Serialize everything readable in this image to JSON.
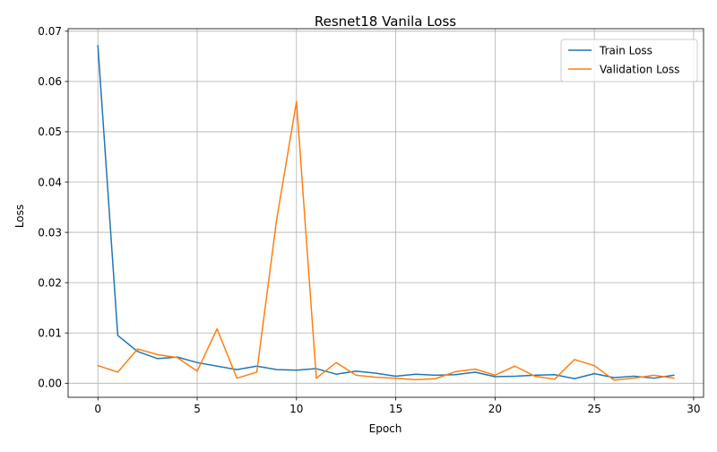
{
  "chart_data": {
    "type": "line",
    "title": "Resnet18 Vanila Loss",
    "xlabel": "Epoch",
    "ylabel": "Loss",
    "xlim": [
      -1.5,
      30.5
    ],
    "ylim": [
      -0.0028,
      0.0705
    ],
    "xticks": [
      0,
      5,
      10,
      15,
      20,
      25,
      30
    ],
    "yticks": [
      0.0,
      0.01,
      0.02,
      0.03,
      0.04,
      0.05,
      0.06,
      0.07
    ],
    "ytick_labels": [
      "0.00",
      "0.01",
      "0.02",
      "0.03",
      "0.04",
      "0.05",
      "0.06",
      "0.07"
    ],
    "grid": true,
    "legend": "top-right",
    "x": [
      0,
      1,
      2,
      3,
      4,
      5,
      6,
      7,
      8,
      9,
      10,
      11,
      12,
      13,
      14,
      15,
      16,
      17,
      18,
      19,
      20,
      21,
      22,
      23,
      24,
      25,
      26,
      27,
      28,
      29
    ],
    "series": [
      {
        "name": "Train Loss",
        "color": "#1f77b4",
        "values": [
          0.0671,
          0.0095,
          0.0063,
          0.0049,
          0.0052,
          0.0041,
          0.0034,
          0.0027,
          0.0034,
          0.0027,
          0.0026,
          0.0029,
          0.0018,
          0.0024,
          0.002,
          0.0014,
          0.0018,
          0.0016,
          0.0017,
          0.0022,
          0.0013,
          0.0014,
          0.0016,
          0.0017,
          0.0009,
          0.0019,
          0.0011,
          0.0014,
          0.001,
          0.0016
        ]
      },
      {
        "name": "Validation Loss",
        "color": "#ff7f0e",
        "values": [
          0.0035,
          0.0022,
          0.0068,
          0.0057,
          0.0051,
          0.0024,
          0.0108,
          0.001,
          0.0022,
          0.0325,
          0.056,
          0.001,
          0.0041,
          0.0016,
          0.0012,
          0.001,
          0.0007,
          0.0009,
          0.0023,
          0.0028,
          0.0016,
          0.0034,
          0.0014,
          0.0008,
          0.0047,
          0.0035,
          0.0006,
          0.001,
          0.0016,
          0.001
        ]
      }
    ]
  }
}
